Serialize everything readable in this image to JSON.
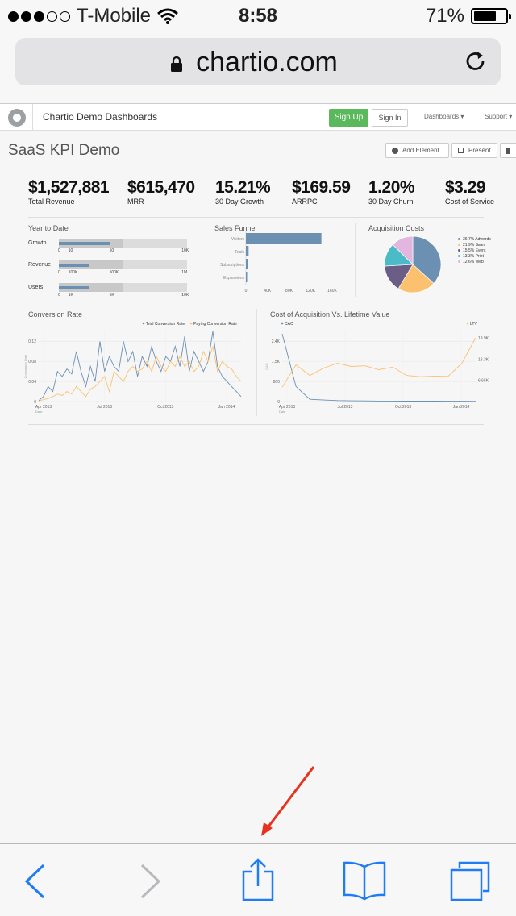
{
  "status_bar": {
    "carrier": "T-Mobile",
    "time": "8:58",
    "battery_percent": "71%",
    "battery_level": 0.71,
    "signal_bars_filled": 3,
    "signal_bars_total": 5
  },
  "browser": {
    "url": "chartio.com"
  },
  "header": {
    "site_title": "Chartio Demo Dashboards",
    "sign_up": "Sign Up",
    "sign_in": "Sign In",
    "dashboards_menu": "Dashboards ▾",
    "support_menu": "Support ▾"
  },
  "dashboard": {
    "title": "SaaS KPI Demo",
    "add_element": "Add Element",
    "present": "Present"
  },
  "kpis": [
    {
      "value": "$1,527,881",
      "label": "Total Revenue"
    },
    {
      "value": "$615,470",
      "label": "MRR"
    },
    {
      "value": "15.21%",
      "label": "30 Day Growth"
    },
    {
      "value": "$169.59",
      "label": "ARRPC"
    },
    {
      "value": "1.20%",
      "label": "30 Day Churn"
    },
    {
      "value": "$3.29",
      "label": "Cost of Service"
    }
  ],
  "year_to_date": {
    "title": "Year to Date",
    "rows": [
      {
        "label": "Growth",
        "ticks": [
          "0",
          "10",
          "50",
          "10K"
        ],
        "value_fraction": 0.4
      },
      {
        "label": "Revenue",
        "ticks": [
          "0",
          "100K",
          "500K",
          "1M"
        ],
        "value_fraction": 0.24
      },
      {
        "label": "Users",
        "ticks": [
          "0",
          "1K",
          "5K",
          "10K"
        ],
        "value_fraction": 0.23
      }
    ]
  },
  "chart_data": [
    {
      "type": "bar",
      "title": "Sales Funnel",
      "orientation": "horizontal",
      "categories": [
        "Visitors",
        "Trials",
        "Subscriptions",
        "Expansions"
      ],
      "values": [
        140000,
        5000,
        4000,
        2000
      ],
      "xticks": [
        "0",
        "40K",
        "80K",
        "120K",
        "160K"
      ],
      "xlim": [
        0,
        160000
      ]
    },
    {
      "type": "pie",
      "title": "Acquisition Costs",
      "labels": [
        "36.7% Adwords",
        "21.9% Sales",
        "15.5% Event",
        "13.3% Print",
        "12.6% Web"
      ],
      "values": [
        36.7,
        21.9,
        15.5,
        13.3,
        12.6
      ],
      "colors": [
        "#6b90b2",
        "#fbc16e",
        "#6a5d86",
        "#4bbbc8",
        "#e2b6df"
      ],
      "legend": "right"
    },
    {
      "type": "line",
      "title": "Conversion Rate",
      "xlabel": "Date",
      "ylabel": "Conversion Rate",
      "xticks": [
        "Apr 2013",
        "Jul 2013",
        "Oct 2013",
        "Jan 2014"
      ],
      "yticks": [
        "0",
        "0.04",
        "0.08",
        "0.12"
      ],
      "ylim": [
        0,
        0.14
      ],
      "series": [
        {
          "name": "Trial Conversion Rate",
          "color": "#6b90b2",
          "values": [
            0.002,
            0.01,
            0.03,
            0.02,
            0.06,
            0.05,
            0.065,
            0.055,
            0.1,
            0.06,
            0.03,
            0.07,
            0.04,
            0.12,
            0.06,
            0.09,
            0.07,
            0.06,
            0.12,
            0.08,
            0.1,
            0.05,
            0.09,
            0.07,
            0.11,
            0.08,
            0.06,
            0.09,
            0.08,
            0.11,
            0.07,
            0.13,
            0.06,
            0.1,
            0.08,
            0.06,
            0.08,
            0.14,
            0.07,
            0.05,
            0.04,
            0.03,
            0.02,
            0.01
          ]
        },
        {
          "name": "Paying Conversion Rate",
          "color": "#fbc16e",
          "values": [
            0.001,
            0.004,
            0.006,
            0.01,
            0.015,
            0.012,
            0.02,
            0.015,
            0.03,
            0.02,
            0.01,
            0.025,
            0.03,
            0.04,
            0.05,
            0.02,
            0.06,
            0.05,
            0.04,
            0.06,
            0.07,
            0.06,
            0.065,
            0.08,
            0.06,
            0.09,
            0.07,
            0.06,
            0.08,
            0.07,
            0.09,
            0.07,
            0.08,
            0.06,
            0.07,
            0.1,
            0.08,
            0.11,
            0.06,
            0.08,
            0.07,
            0.065,
            0.05,
            0.04
          ]
        }
      ]
    },
    {
      "type": "line",
      "title": "Cost of Acquisition Vs. Lifetime Value",
      "xlabel": "Date",
      "ylabel": "CAC",
      "xticks": [
        "Apr 2013",
        "Jul 2013",
        "Oct 2013",
        "Jan 2014"
      ],
      "yticks": [
        "0",
        "800",
        "1.5K",
        "2.4K"
      ],
      "y2ticks": [
        "6.65K",
        "13.3K",
        "19.9K"
      ],
      "ylim": [
        0,
        2800
      ],
      "y2lim": [
        0,
        22000
      ],
      "series": [
        {
          "name": "CAC",
          "color": "#6b90b2",
          "axis": "left",
          "values": [
            2700,
            600,
            90,
            60,
            40,
            30,
            25,
            20,
            20,
            15,
            15,
            15,
            12,
            12,
            10
          ]
        },
        {
          "name": "LTV",
          "color": "#fbc16e",
          "axis": "right",
          "values": [
            4500,
            11500,
            8200,
            10500,
            12000,
            11000,
            11200,
            10000,
            10800,
            8200,
            7800,
            8000,
            7900,
            12000,
            20000
          ]
        }
      ]
    }
  ],
  "bottom_toolbar": {
    "back": "back-chevron",
    "forward": "forward-chevron",
    "share": "share-icon",
    "bookmarks": "bookmarks-icon",
    "tabs": "tabs-icon"
  },
  "annotation": {
    "arrow_color": "#e8321f"
  }
}
